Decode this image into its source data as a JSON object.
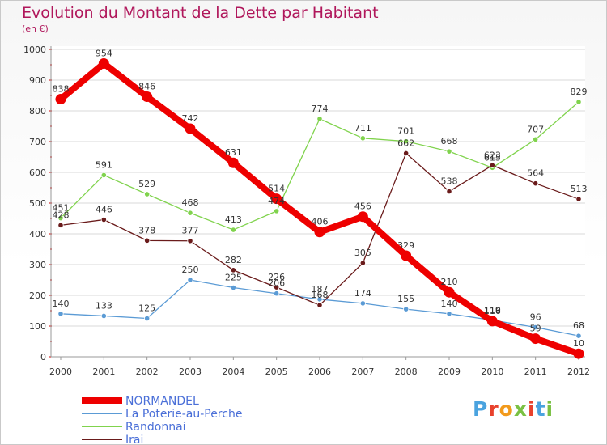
{
  "header": {
    "title": "Evolution du Montant de la Dette par Habitant",
    "subtitle": "(en €)"
  },
  "logo": {
    "text": "Proxiti",
    "colors": [
      "#4aa3df",
      "#e8412c",
      "#f29a1c",
      "#7ac143",
      "#e8412c",
      "#4aa3df",
      "#7ac143"
    ]
  },
  "chart_data": {
    "type": "line",
    "title": "Evolution du Montant de la Dette par Habitant",
    "subtitle": "(en €)",
    "x": [
      "2000",
      "2001",
      "2002",
      "2003",
      "2004",
      "2005",
      "2006",
      "2007",
      "2008",
      "2009",
      "2010",
      "2011",
      "2012"
    ],
    "y_ticks": [
      "0",
      "100",
      "200",
      "300",
      "400",
      "500",
      "600",
      "700",
      "800",
      "900",
      "1000"
    ],
    "ylim": [
      0,
      1000
    ],
    "grid": "horizontal",
    "legend_position": "bottom-left",
    "series": [
      {
        "name": "NORMANDEL",
        "color": "#ee0000",
        "values": [
          838,
          954,
          846,
          742,
          631,
          514,
          406,
          456,
          329,
          210,
          116,
          59,
          10
        ],
        "labels": [
          "838",
          "954",
          "846",
          "742",
          "631",
          "514",
          "406",
          "456",
          "329",
          "210",
          "116",
          "59",
          "10"
        ]
      },
      {
        "name": "La Poterie-au-Perche",
        "color": "#5b9bd5",
        "values": [
          140,
          133,
          125,
          250,
          225,
          206,
          187,
          174,
          155,
          140,
          119,
          96,
          68
        ],
        "labels": [
          "140",
          "133",
          "125",
          "250",
          "225",
          "206",
          "187",
          "174",
          "155",
          "140",
          "119",
          "96",
          "68"
        ]
      },
      {
        "name": "Randonnai",
        "color": "#80d34d",
        "values": [
          451,
          591,
          529,
          468,
          413,
          474,
          774,
          711,
          701,
          668,
          615,
          707,
          829
        ],
        "labels": [
          "451",
          "591",
          "529",
          "468",
          "413",
          "474",
          "774",
          "711",
          "701",
          "668",
          "615",
          "707",
          "829"
        ]
      },
      {
        "name": "Irai",
        "color": "#6a1b1b",
        "values": [
          428,
          446,
          378,
          377,
          282,
          226,
          168,
          305,
          662,
          538,
          623,
          564,
          513
        ],
        "labels": [
          "428",
          "446",
          "378",
          "377",
          "282",
          "226",
          "168",
          "305",
          "662",
          "538",
          "623",
          "564",
          "513"
        ]
      }
    ]
  }
}
